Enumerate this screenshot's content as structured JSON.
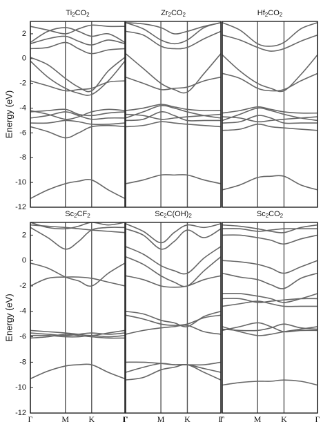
{
  "chart_data": [
    {
      "type": "line",
      "title": "Ti2CO2",
      "ylabel": "Energy (eV)",
      "color": "#666666",
      "x": [
        0,
        0.5,
        1,
        1.375,
        1.75,
        2.225,
        2.7
      ],
      "xlim": [
        0,
        2.7
      ],
      "xticks": [
        0,
        1,
        1.75,
        2.7
      ],
      "ylim": [
        -12,
        3
      ],
      "yticks": [
        2,
        0,
        -2,
        -4,
        -6,
        -8,
        -10,
        -12
      ],
      "series": [
        {
          "values": [
            -11.3,
            -10.6,
            -10.1,
            -9.9,
            -9.8,
            -10.6,
            -11.3
          ]
        },
        {
          "values": [
            -5.5,
            -5.9,
            -6.4,
            -6.0,
            -5.5,
            -5.4,
            -5.5
          ]
        },
        {
          "values": [
            -5.2,
            -5.2,
            -5.0,
            -5.1,
            -5.3,
            -5.3,
            -5.2
          ]
        },
        {
          "values": [
            -4.8,
            -4.6,
            -4.3,
            -4.6,
            -4.9,
            -4.8,
            -4.8
          ]
        },
        {
          "values": [
            -4.3,
            -4.2,
            -4.1,
            -4.5,
            -4.6,
            -4.4,
            -4.3
          ]
        },
        {
          "values": [
            -4.2,
            -4.5,
            -4.9,
            -4.7,
            -4.3,
            -4.1,
            -4.2
          ]
        },
        {
          "values": [
            -0.2,
            -1.5,
            -2.4,
            -2.8,
            -2.9,
            -1.8,
            -0.2
          ]
        },
        {
          "values": [
            -1.8,
            -2.2,
            -2.6,
            -2.5,
            -2.4,
            -1.9,
            -1.8
          ]
        },
        {
          "values": [
            0.1,
            -0.5,
            -1.6,
            -2.3,
            -2.6,
            -1.0,
            0.1
          ]
        },
        {
          "values": [
            1.2,
            1.6,
            1.8,
            1.4,
            1.1,
            1.5,
            1.2
          ]
        },
        {
          "values": [
            1.3,
            2.2,
            2.5,
            2.2,
            1.8,
            2.0,
            1.3
          ]
        },
        {
          "values": [
            2.6,
            2.3,
            2.0,
            2.4,
            2.7,
            2.6,
            2.6
          ]
        },
        {
          "values": [
            0.8,
            0.9,
            1.3,
            0.8,
            0.4,
            0.7,
            0.8
          ]
        }
      ]
    },
    {
      "type": "line",
      "title": "Zr2CO2",
      "color": "#666666",
      "x": [
        0,
        0.5,
        1,
        1.375,
        1.75,
        2.225,
        2.7
      ],
      "xlim": [
        0,
        2.7
      ],
      "xticks": [
        0,
        1,
        1.75,
        2.7
      ],
      "ylim": [
        -12,
        3
      ],
      "series": [
        {
          "values": [
            -10.1,
            -9.8,
            -9.4,
            -9.4,
            -9.4,
            -9.8,
            -10.1
          ]
        },
        {
          "values": [
            -5.5,
            -5.4,
            -5.1,
            -5.2,
            -5.3,
            -5.4,
            -5.5
          ]
        },
        {
          "values": [
            -4.8,
            -4.3,
            -3.8,
            -4.0,
            -4.3,
            -4.6,
            -4.8
          ]
        },
        {
          "values": [
            -4.2,
            -4.0,
            -3.7,
            -3.9,
            -4.1,
            -4.2,
            -4.2
          ]
        },
        {
          "values": [
            -5.0,
            -4.9,
            -4.3,
            -4.6,
            -5.0,
            -5.0,
            -5.0
          ]
        },
        {
          "values": [
            -4.5,
            -4.6,
            -4.9,
            -4.8,
            -4.7,
            -4.6,
            -4.5
          ]
        },
        {
          "values": [
            0.4,
            -0.8,
            -2.0,
            -2.5,
            -2.7,
            -1.2,
            0.4
          ]
        },
        {
          "values": [
            -1.5,
            -2.0,
            -2.5,
            -2.4,
            -2.3,
            -1.8,
            -1.5
          ]
        },
        {
          "values": [
            2.9,
            2.4,
            1.5,
            1.2,
            1.5,
            2.5,
            2.9
          ]
        },
        {
          "values": [
            2.9,
            2.8,
            2.5,
            2.0,
            2.2,
            2.6,
            2.9
          ]
        },
        {
          "values": [
            2.2,
            1.9,
            1.0,
            0.8,
            0.9,
            1.6,
            2.2
          ]
        }
      ]
    },
    {
      "type": "line",
      "title": "Hf2CO2",
      "color": "#666666",
      "x": [
        0,
        0.5,
        1,
        1.375,
        1.75,
        2.225,
        2.7
      ],
      "xlim": [
        0,
        2.7
      ],
      "xticks": [
        0,
        1,
        1.75,
        2.7
      ],
      "ylim": [
        -12,
        3
      ],
      "series": [
        {
          "values": [
            -10.6,
            -10.2,
            -9.6,
            -9.5,
            -9.5,
            -10.2,
            -10.6
          ]
        },
        {
          "values": [
            -5.8,
            -5.7,
            -5.3,
            -5.5,
            -5.6,
            -5.7,
            -5.8
          ]
        },
        {
          "values": [
            -5.0,
            -4.5,
            -4.0,
            -4.2,
            -4.5,
            -4.8,
            -5.0
          ]
        },
        {
          "values": [
            -4.4,
            -4.2,
            -3.9,
            -4.1,
            -4.3,
            -4.4,
            -4.4
          ]
        },
        {
          "values": [
            -5.2,
            -5.1,
            -4.6,
            -4.8,
            -5.2,
            -5.2,
            -5.2
          ]
        },
        {
          "values": [
            -4.7,
            -4.8,
            -5.1,
            -5.0,
            -4.9,
            -4.8,
            -4.7
          ]
        },
        {
          "values": [
            0.3,
            -1.0,
            -2.0,
            -2.4,
            -2.6,
            -1.3,
            0.3
          ]
        },
        {
          "values": [
            -1.2,
            -1.6,
            -2.4,
            -2.6,
            -2.5,
            -1.8,
            -1.2
          ]
        },
        {
          "values": [
            2.9,
            2.3,
            1.2,
            1.0,
            1.3,
            2.4,
            2.9
          ]
        },
        {
          "values": [
            1.9,
            1.5,
            0.9,
            0.6,
            0.8,
            1.4,
            1.9
          ]
        }
      ]
    },
    {
      "type": "line",
      "title": "Sc2CF2",
      "ylabel": "Energy (eV)",
      "color": "#666666",
      "x": [
        0,
        0.5,
        1,
        1.375,
        1.75,
        2.225,
        2.7
      ],
      "xlim": [
        0,
        2.7
      ],
      "xticks": [
        {
          "value": 0,
          "label": "Γ"
        },
        {
          "value": 1,
          "label": "M"
        },
        {
          "value": 1.75,
          "label": "K"
        },
        {
          "value": 2.7,
          "label": "Γ"
        }
      ],
      "ylim": [
        -12,
        3
      ],
      "yticks": [
        2,
        0,
        -2,
        -4,
        -6,
        -8,
        -10,
        -12
      ],
      "series": [
        {
          "values": [
            -9.3,
            -8.7,
            -8.3,
            -8.2,
            -8.2,
            -8.8,
            -9.3
          ]
        },
        {
          "values": [
            -5.7,
            -5.8,
            -5.9,
            -5.8,
            -5.7,
            -5.8,
            -5.7
          ]
        },
        {
          "values": [
            -6.1,
            -6.0,
            -5.8,
            -5.9,
            -6.0,
            -6.1,
            -6.1
          ]
        },
        {
          "values": [
            -5.5,
            -5.6,
            -5.7,
            -5.8,
            -5.9,
            -5.7,
            -5.5
          ]
        },
        {
          "values": [
            -5.9,
            -5.9,
            -6.0,
            -6.0,
            -5.9,
            -6.0,
            -5.9
          ]
        },
        {
          "values": [
            -0.2,
            -0.6,
            -1.3,
            -1.6,
            -2.0,
            -1.0,
            -0.2
          ]
        },
        {
          "values": [
            -2.0,
            -1.4,
            -1.3,
            -1.3,
            -1.4,
            -1.7,
            -2.0
          ]
        },
        {
          "values": [
            2.6,
            1.8,
            0.9,
            1.5,
            2.4,
            2.6,
            2.6
          ]
        },
        {
          "values": [
            3.0,
            2.6,
            2.5,
            2.7,
            3.0,
            2.8,
            3.0
          ]
        },
        {
          "values": [
            2.8,
            2.7,
            2.6,
            2.5,
            2.4,
            2.3,
            2.2
          ]
        }
      ]
    },
    {
      "type": "line",
      "title": "Sc2C(OH)2",
      "color": "#666666",
      "x": [
        0,
        0.5,
        1,
        1.375,
        1.75,
        2.225,
        2.7
      ],
      "xlim": [
        0,
        2.7
      ],
      "xticks": [
        {
          "value": 0,
          "label": "Γ"
        },
        {
          "value": 1,
          "label": "M"
        },
        {
          "value": 1.75,
          "label": "K"
        },
        {
          "value": 2.7,
          "label": "Γ"
        }
      ],
      "ylim": [
        -12,
        3
      ],
      "series": [
        {
          "values": [
            -8.8,
            -8.4,
            -8.1,
            -8.2,
            -8.2,
            -8.5,
            -8.8
          ]
        },
        {
          "values": [
            -9.4,
            -9.2,
            -8.6,
            -8.4,
            -8.2,
            -8.8,
            -9.4
          ]
        },
        {
          "values": [
            -8.0,
            -8.0,
            -8.1,
            -8.2,
            -8.2,
            -8.2,
            -8.0
          ]
        },
        {
          "values": [
            -4.0,
            -4.2,
            -4.7,
            -4.9,
            -5.2,
            -4.4,
            -4.0
          ]
        },
        {
          "values": [
            -4.3,
            -4.6,
            -5.0,
            -5.1,
            -5.0,
            -4.5,
            -4.3
          ]
        },
        {
          "values": [
            -5.8,
            -5.5,
            -5.3,
            -5.2,
            -5.1,
            -5.6,
            -5.8
          ]
        },
        {
          "values": [
            0.3,
            -0.3,
            -1.2,
            -1.7,
            -2.0,
            -0.8,
            0.3
          ]
        },
        {
          "values": [
            -1.2,
            -1.5,
            -2.0,
            -2.1,
            -2.0,
            -1.5,
            -1.2
          ]
        },
        {
          "values": [
            1.1,
            0.5,
            -0.4,
            -0.8,
            -1.0,
            0.2,
            1.1
          ]
        },
        {
          "values": [
            2.9,
            2.3,
            1.4,
            2.2,
            2.8,
            2.6,
            2.9
          ]
        },
        {
          "values": [
            2.5,
            2.0,
            0.9,
            1.5,
            2.4,
            1.8,
            2.5
          ]
        }
      ]
    },
    {
      "type": "line",
      "title": "Sc2CO2",
      "color": "#666666",
      "x": [
        0,
        0.5,
        1,
        1.375,
        1.75,
        2.225,
        2.7
      ],
      "xlim": [
        0,
        2.7
      ],
      "xticks": [
        {
          "value": 0,
          "label": "Γ"
        },
        {
          "value": 1,
          "label": "M"
        },
        {
          "value": 1.75,
          "label": "K"
        },
        {
          "value": 2.7,
          "label": "Γ"
        }
      ],
      "ylim": [
        -12,
        3
      ],
      "series": [
        {
          "values": [
            -9.8,
            -9.6,
            -9.5,
            -9.5,
            -9.4,
            -9.5,
            -9.8
          ]
        },
        {
          "values": [
            -5.5,
            -5.2,
            -4.9,
            -5.2,
            -5.6,
            -5.5,
            -5.5
          ]
        },
        {
          "values": [
            -5.4,
            -5.5,
            -5.5,
            -5.3,
            -5.0,
            -5.3,
            -5.4
          ]
        },
        {
          "values": [
            -5.2,
            -5.6,
            -5.9,
            -5.8,
            -5.6,
            -5.4,
            -5.2
          ]
        },
        {
          "values": [
            -2.6,
            -2.6,
            -2.8,
            -3.0,
            -3.3,
            -3.0,
            -2.6
          ]
        },
        {
          "values": [
            -3.6,
            -3.4,
            -3.2,
            -3.4,
            -3.6,
            -3.6,
            -3.6
          ]
        },
        {
          "values": [
            -3.0,
            -3.0,
            -3.3,
            -3.2,
            -3.1,
            -3.0,
            -3.0
          ]
        },
        {
          "values": [
            -1.0,
            -1.3,
            -1.5,
            -1.9,
            -2.2,
            -1.4,
            -1.0
          ]
        },
        {
          "values": [
            0.0,
            -0.1,
            -0.3,
            -0.6,
            -1.0,
            -0.5,
            0.0
          ]
        },
        {
          "values": [
            2.0,
            2.0,
            1.8,
            1.6,
            1.3,
            1.7,
            2.0
          ]
        },
        {
          "values": [
            2.5,
            2.5,
            2.3,
            2.4,
            2.5,
            2.5,
            2.5
          ]
        },
        {
          "values": [
            2.8,
            2.7,
            2.5,
            2.3,
            2.2,
            2.6,
            2.8
          ]
        }
      ]
    }
  ]
}
